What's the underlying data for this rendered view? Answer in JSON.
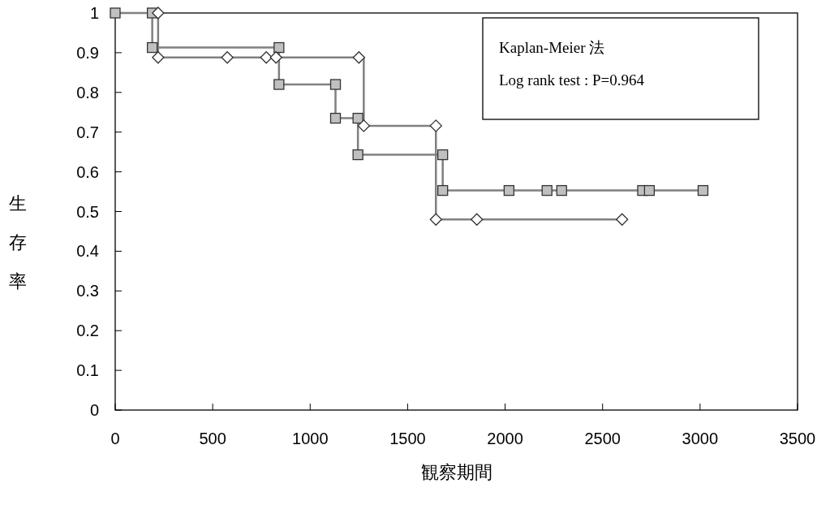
{
  "chart_data": {
    "type": "step",
    "xlabel": "観察期間",
    "ylabel": "生存率",
    "xlim": [
      0,
      3500
    ],
    "ylim": [
      0,
      1
    ],
    "xticks": [
      0,
      500,
      1000,
      1500,
      2000,
      2500,
      3000,
      3500
    ],
    "yticks": [
      0,
      0.1,
      0.2,
      0.3,
      0.4,
      0.5,
      0.6,
      0.7,
      0.8,
      0.9,
      1
    ],
    "grid": false,
    "annotations": [
      "Kaplan-Meier 法",
      "Log rank test : P=0.964"
    ],
    "series": [
      {
        "color": "#808080",
        "marker": "square",
        "x": [
          0,
          190,
          190,
          840,
          840,
          1130,
          1130,
          1245,
          1245,
          1680,
          1680,
          2020,
          2215,
          2290,
          2705,
          2740,
          3015
        ],
        "values": [
          1,
          1,
          0.913,
          0.913,
          0.82,
          0.82,
          0.735,
          0.735,
          0.643,
          0.643,
          0.553,
          0.553,
          0.553,
          0.553,
          0.553,
          0.553,
          0.553
        ]
      },
      {
        "color": "#808080",
        "marker": "diamond",
        "x": [
          220,
          220,
          575,
          775,
          825,
          1250,
          1275,
          1645,
          1645,
          1855,
          2600
        ],
        "values": [
          1,
          0.888,
          0.888,
          0.888,
          0.888,
          0.888,
          0.716,
          0.716,
          0.48,
          0.48,
          0.48
        ]
      }
    ]
  }
}
